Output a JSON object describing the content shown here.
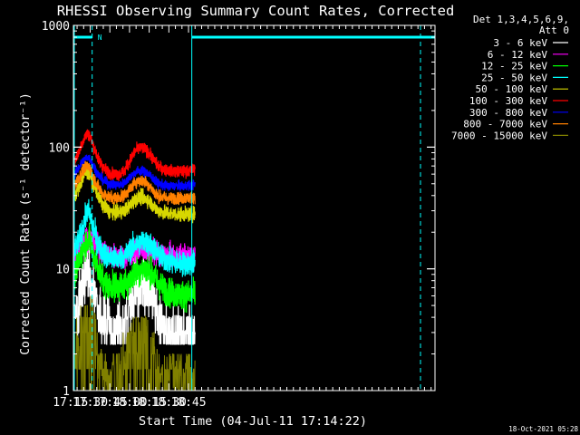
{
  "chart_data": {
    "type": "line",
    "title": "RHESSI Observing Summary Count Rates, Corrected",
    "xlabel": "Start Time (04-Jul-11 17:14:22)",
    "ylabel": "Corrected Count Rate (s⁻¹ detector⁻¹)",
    "yscale": "log",
    "ylim": [
      1,
      1000
    ],
    "xlim_minutes": [
      17.2,
      293.0
    ],
    "x_unit": "minutes after 17:00",
    "xtick_labels": [
      "17:15",
      "17:30",
      "17:45",
      "18:00",
      "18:15",
      "18:30",
      "18:45"
    ],
    "xtick_minutes": [
      15,
      30,
      45,
      60,
      75,
      90,
      105
    ],
    "ytick_labels": [
      "1",
      "10",
      "100",
      "1000"
    ],
    "ytick_values": [
      1,
      10,
      100,
      1000
    ],
    "grid": false,
    "legend_header": [
      "Det 1,3,4,5,6,9,",
      "Att 0"
    ],
    "legend_location": "right",
    "background": "#000000",
    "axis_color": "#ffffff",
    "x_profile_minutes": [
      17.2,
      22,
      26,
      28,
      30,
      32,
      36,
      40,
      44,
      48,
      52,
      56,
      60,
      62,
      64,
      66,
      68,
      70,
      72,
      74,
      76,
      78,
      80,
      82,
      86,
      90,
      96,
      100,
      106,
      110
    ],
    "series": [
      {
        "name": "3 - 6 keV",
        "color": "#ffffff",
        "noise": 0.12,
        "y": [
          3.4,
          5.6,
          8.5,
          9.3,
          8.2,
          6.6,
          4.6,
          3.6,
          3.2,
          3.0,
          3.0,
          3.4,
          5.0,
          6.2,
          7.2,
          7.6,
          7.5,
          7.2,
          7.0,
          6.8,
          6.2,
          5.4,
          4.6,
          4.0,
          3.3,
          2.9,
          2.8,
          2.8,
          2.8,
          2.9
        ]
      },
      {
        "name": "6 - 12 keV",
        "color": "#ff00ff",
        "noise": 0.05,
        "y": [
          11.5,
          14.5,
          17.5,
          18.5,
          18.0,
          17.0,
          15.0,
          13.5,
          13.0,
          12.8,
          12.6,
          12.8,
          13.4,
          13.6,
          14.0,
          14.2,
          14.4,
          14.4,
          14.3,
          14.2,
          14.0,
          13.8,
          13.4,
          13.2,
          13.0,
          12.8,
          12.6,
          12.6,
          12.6,
          12.6
        ]
      },
      {
        "name": "12 - 25 keV",
        "color": "#00ff00",
        "noise": 0.06,
        "y": [
          8.0,
          12.0,
          16.0,
          17.5,
          16.8,
          14.0,
          10.0,
          8.0,
          7.3,
          7.2,
          7.2,
          7.4,
          8.0,
          8.6,
          9.2,
          9.5,
          9.8,
          9.9,
          10.0,
          9.8,
          9.4,
          8.8,
          8.2,
          7.6,
          6.8,
          6.4,
          6.2,
          6.1,
          6.1,
          6.2
        ]
      },
      {
        "name": "25 - 50 keV",
        "color": "#00ffff",
        "noise": 0.05,
        "y": [
          13.0,
          18.0,
          25.0,
          30.0,
          28.0,
          22.0,
          16.0,
          13.5,
          12.5,
          12.0,
          12.2,
          12.6,
          14.0,
          14.8,
          15.6,
          16.0,
          16.5,
          16.8,
          16.6,
          16.2,
          15.6,
          15.0,
          14.0,
          13.0,
          12.0,
          11.5,
          11.2,
          11.0,
          11.0,
          11.2
        ]
      },
      {
        "name": "50 - 100 keV",
        "color": "#d7d700",
        "noise": 0.03,
        "y": [
          37.0,
          48.0,
          60.0,
          63.0,
          60.0,
          52.0,
          40.0,
          33.0,
          30.0,
          29.0,
          29.0,
          30.0,
          33.0,
          35.0,
          37.0,
          38.0,
          38.5,
          38.5,
          38.0,
          37.0,
          35.0,
          33.0,
          31.0,
          30.0,
          29.0,
          28.5,
          28.0,
          28.0,
          28.0,
          28.5
        ]
      },
      {
        "name": "100 - 300 keV",
        "color": "#ff0000",
        "noise": 0.025,
        "y": [
          72.0,
          95.0,
          122.0,
          130.0,
          122.0,
          105.0,
          80.0,
          68.0,
          62.0,
          60.0,
          60.0,
          63.0,
          76.0,
          84.0,
          92.0,
          96.0,
          98.0,
          98.0,
          96.0,
          92.0,
          86.0,
          80.0,
          74.0,
          70.0,
          66.0,
          64.0,
          63.0,
          63.0,
          64.0,
          66.0
        ]
      },
      {
        "name": "300 - 800 keV",
        "color": "#0000ff",
        "noise": 0.02,
        "y": [
          57.0,
          70.0,
          80.0,
          83.0,
          80.0,
          72.0,
          60.0,
          53.0,
          50.0,
          49.0,
          49.0,
          51.0,
          56.0,
          59.0,
          62.0,
          63.5,
          64.0,
          63.5,
          62.5,
          61.0,
          58.0,
          55.0,
          52.0,
          50.0,
          48.5,
          48.0,
          48.0,
          48.0,
          48.5,
          49.0
        ]
      },
      {
        "name": "800 - 7000 keV",
        "color": "#ff8000",
        "noise": 0.025,
        "y": [
          46.0,
          58.0,
          68.0,
          70.0,
          67.0,
          58.0,
          47.0,
          41.0,
          39.0,
          38.5,
          38.5,
          40.0,
          45.0,
          48.0,
          51.0,
          52.5,
          53.0,
          52.5,
          51.5,
          50.0,
          47.0,
          44.0,
          41.0,
          39.5,
          38.5,
          38.0,
          38.0,
          38.0,
          38.5,
          39.0
        ]
      },
      {
        "name": "7000 - 15000 keV",
        "color": "#808000",
        "noise": 0.0,
        "y": [
          2.0,
          3.0,
          4.5,
          5.0,
          4.5,
          4.0,
          2.0,
          1.5,
          1.2,
          1.3,
          1.5,
          2.0,
          2.5,
          2.8,
          3.0,
          3.0,
          3.0,
          3.0,
          3.0,
          2.8,
          2.4,
          2.0,
          1.7,
          1.5,
          1.4,
          1.4,
          1.4,
          1.4,
          1.4,
          1.4
        ]
      }
    ],
    "attenuator_markers": {
      "color": "#00ffff",
      "intervals": [
        [
          17.2,
          31.5
        ],
        [
          107.5,
          293.0
        ]
      ],
      "label": "N"
    },
    "footer_timestamp": "18-Oct-2021 05:28"
  }
}
